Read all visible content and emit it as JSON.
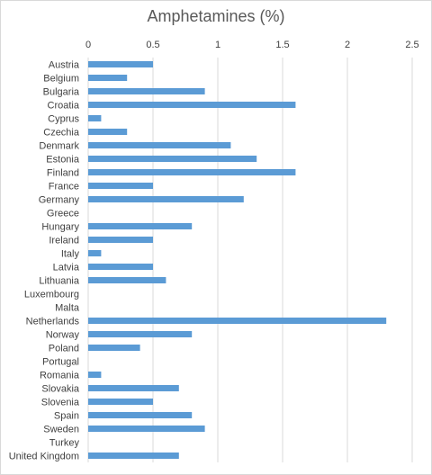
{
  "chart_data": {
    "type": "bar",
    "orientation": "horizontal",
    "title": "Amphetamines (%)",
    "xlabel": "",
    "ylabel": "",
    "xlim": [
      0,
      2.5
    ],
    "x_ticks": [
      0,
      0.5,
      1,
      1.5,
      2,
      2.5
    ],
    "x_tick_labels": [
      "0",
      "0.5",
      "1",
      "1.5",
      "2",
      "2.5"
    ],
    "x_axis_position": "top",
    "grid": true,
    "legend": "none",
    "bar_color": "#5b9bd5",
    "categories": [
      "Austria",
      "Belgium",
      "Bulgaria",
      "Croatia",
      "Cyprus",
      "Czechia",
      "Denmark",
      "Estonia",
      "Finland",
      "France",
      "Germany",
      "Greece",
      "Hungary",
      "Ireland",
      "Italy",
      "Latvia",
      "Lithuania",
      "Luxembourg",
      "Malta",
      "Netherlands",
      "Norway",
      "Poland",
      "Portugal",
      "Romania",
      "Slovakia",
      "Slovenia",
      "Spain",
      "Sweden",
      "Turkey",
      "United Kingdom"
    ],
    "values": [
      0.5,
      0.3,
      0.9,
      1.6,
      0.1,
      0.3,
      1.1,
      1.3,
      1.6,
      0.5,
      1.2,
      null,
      0.8,
      0.5,
      0.1,
      0.5,
      0.6,
      null,
      null,
      2.3,
      0.8,
      0.4,
      null,
      0.1,
      0.7,
      0.5,
      0.8,
      0.9,
      null,
      0.7
    ]
  }
}
